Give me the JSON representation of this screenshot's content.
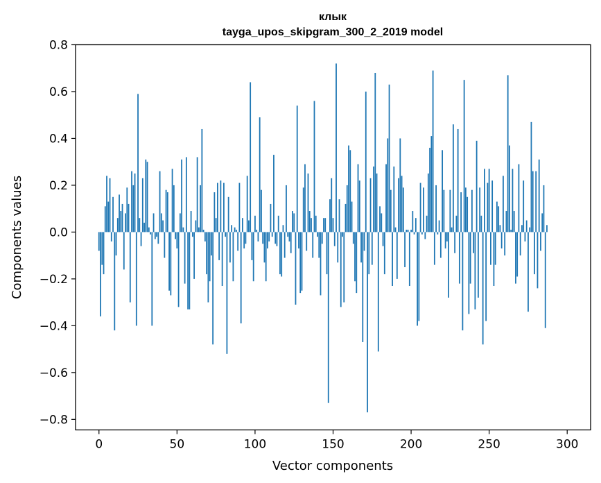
{
  "chart_data": {
    "type": "bar",
    "title": "клык",
    "subtitle": "tayga_upos_skipgram_300_2_2019 model",
    "xlabel": "Vector components",
    "ylabel": "Components values",
    "xlim": [
      -15,
      315
    ],
    "ylim": [
      -0.845,
      0.8
    ],
    "xticks": [
      0,
      50,
      100,
      150,
      200,
      250,
      300
    ],
    "xtick_labels": [
      "0",
      "50",
      "100",
      "150",
      "200",
      "250",
      "300"
    ],
    "yticks": [
      -0.8,
      -0.6,
      -0.4,
      -0.2,
      0.0,
      0.2,
      0.4,
      0.6,
      0.8
    ],
    "ytick_labels": [
      "−0.8",
      "−0.6",
      "−0.4",
      "−0.2",
      "0.0",
      "0.2",
      "0.4",
      "0.6",
      "0.8"
    ],
    "grid": false,
    "bar_color": "#1f77b4",
    "values": [
      -0.08,
      -0.36,
      -0.14,
      -0.18,
      0.11,
      0.24,
      0.13,
      0.23,
      -0.04,
      0.15,
      -0.42,
      -0.1,
      0.06,
      0.16,
      0.09,
      0.12,
      -0.16,
      0.08,
      0.19,
      0.12,
      -0.3,
      0.26,
      0.2,
      0.25,
      -0.4,
      0.59,
      0.06,
      -0.06,
      0.23,
      0.04,
      0.31,
      0.3,
      0.02,
      -0.01,
      -0.4,
      0.08,
      -0.03,
      -0.02,
      -0.05,
      0.26,
      0.08,
      0.05,
      -0.11,
      0.18,
      0.17,
      -0.25,
      -0.27,
      0.27,
      0.2,
      -0.03,
      -0.07,
      -0.32,
      0.08,
      0.31,
      0.02,
      -0.22,
      0.32,
      -0.33,
      -0.33,
      0.09,
      -0.02,
      -0.2,
      0.05,
      0.32,
      0.02,
      0.2,
      0.44,
      0.01,
      -0.04,
      -0.18,
      -0.3,
      -0.21,
      -0.1,
      -0.48,
      0.17,
      0.06,
      0.21,
      -0.12,
      0.22,
      -0.23,
      0.21,
      -0.02,
      -0.52,
      0.15,
      -0.13,
      0.03,
      -0.21,
      0.02,
      0.01,
      -0.08,
      0.21,
      -0.39,
      0.06,
      -0.07,
      -0.05,
      0.24,
      0.05,
      0.64,
      -0.12,
      -0.21,
      0.07,
      0.01,
      -0.04,
      0.49,
      0.18,
      -0.05,
      -0.13,
      -0.21,
      -0.07,
      -0.04,
      0.12,
      -0.02,
      0.33,
      -0.05,
      -0.06,
      0.07,
      -0.18,
      -0.19,
      0.03,
      -0.11,
      0.2,
      -0.02,
      -0.04,
      -0.09,
      0.09,
      0.08,
      -0.31,
      0.54,
      -0.07,
      -0.26,
      -0.25,
      0.19,
      0.29,
      -0.08,
      0.25,
      0.09,
      0.06,
      -0.11,
      0.56,
      0.07,
      -0.02,
      -0.11,
      -0.27,
      -0.05,
      0.06,
      0.06,
      -0.18,
      -0.73,
      0.14,
      0.23,
      0.06,
      -0.06,
      0.72,
      -0.13,
      0.14,
      -0.32,
      -0.02,
      -0.3,
      0.12,
      0.2,
      0.37,
      0.35,
      0.13,
      -0.05,
      -0.21,
      -0.26,
      0.29,
      0.22,
      -0.13,
      -0.47,
      -0.08,
      0.6,
      -0.77,
      -0.18,
      0.23,
      -0.14,
      0.28,
      0.68,
      0.25,
      -0.51,
      0.11,
      0.08,
      -0.06,
      -0.18,
      0.29,
      0.4,
      0.63,
      0.18,
      -0.23,
      0.28,
      0.02,
      -0.2,
      0.23,
      0.4,
      0.24,
      0.19,
      -0.15,
      0.01,
      0.01,
      -0.23,
      0.01,
      0.09,
      -0.01,
      0.06,
      -0.4,
      -0.38,
      0.21,
      -0.01,
      0.19,
      -0.03,
      0.07,
      0.25,
      0.36,
      0.41,
      0.69,
      -0.14,
      0.2,
      -0.01,
      0.05,
      -0.11,
      0.35,
      0.18,
      -0.07,
      -0.04,
      -0.28,
      0.18,
      0.02,
      0.46,
      -0.09,
      0.07,
      0.44,
      -0.22,
      0.17,
      -0.42,
      0.65,
      0.19,
      0.15,
      -0.35,
      -0.22,
      0.18,
      -0.09,
      -0.33,
      0.39,
      -0.28,
      0.19,
      0.07,
      -0.48,
      0.27,
      -0.38,
      0.21,
      0.27,
      -0.14,
      0.22,
      -0.23,
      -0.14,
      0.13,
      0.11,
      0.03,
      -0.07,
      0.24,
      -0.1,
      0.09,
      0.67,
      0.37,
      0.01,
      0.27,
      0.09,
      -0.22,
      -0.19,
      0.29,
      -0.1,
      0.03,
      0.22,
      -0.04,
      0.05,
      -0.34,
      0.02,
      0.47,
      0.26,
      -0.18,
      0.26,
      -0.24,
      0.31,
      -0.08,
      0.08,
      0.2,
      -0.41,
      0.03
    ]
  }
}
